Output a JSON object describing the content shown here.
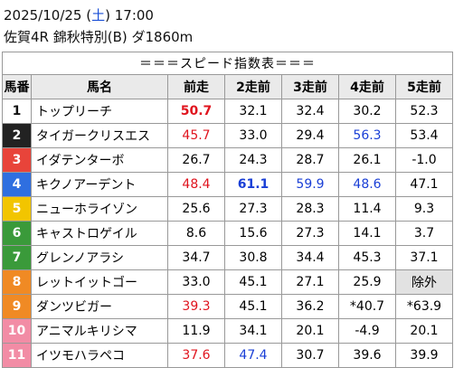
{
  "header": {
    "date": "2025/10/25",
    "weekday": "土",
    "time": "17:00",
    "race": "佐賀4R 錦秋特別(B) ダ1860m"
  },
  "table": {
    "title": "＝＝＝スピード指数表＝＝＝",
    "columns": [
      "馬番",
      "馬名",
      "前走",
      "2走前",
      "3走前",
      "4走前",
      "5走前"
    ],
    "rows": [
      [
        "1",
        "トップリーチ",
        "50.7",
        "32.1",
        "32.4",
        "30.2",
        "52.3"
      ],
      [
        "2",
        "タイガークリスエス",
        "45.7",
        "33.0",
        "29.4",
        "56.3",
        "53.4"
      ],
      [
        "3",
        "イダテンターボ",
        "26.7",
        "24.3",
        "28.7",
        "26.1",
        "-1.0"
      ],
      [
        "4",
        "キクノアーデント",
        "48.4",
        "61.1",
        "59.9",
        "48.6",
        "47.1"
      ],
      [
        "5",
        "ニューホライゾン",
        "25.6",
        "27.3",
        "28.3",
        "11.4",
        "9.3"
      ],
      [
        "6",
        "キャストロゲイル",
        "8.6",
        "15.6",
        "27.3",
        "14.1",
        "3.7"
      ],
      [
        "7",
        "グレンノアラシ",
        "34.7",
        "30.8",
        "34.4",
        "45.3",
        "37.1"
      ],
      [
        "8",
        "レットイットゴー",
        "33.0",
        "45.1",
        "27.1",
        "25.9",
        "除外"
      ],
      [
        "9",
        "ダンツビガー",
        "39.3",
        "45.1",
        "36.2",
        "*40.7",
        "*63.9"
      ],
      [
        "10",
        "アニマルキリシマ",
        "11.9",
        "34.1",
        "20.1",
        "-4.9",
        "20.1"
      ],
      [
        "11",
        "イツモハラペコ",
        "37.6",
        "47.4",
        "30.7",
        "39.6",
        "39.9"
      ]
    ]
  }
}
